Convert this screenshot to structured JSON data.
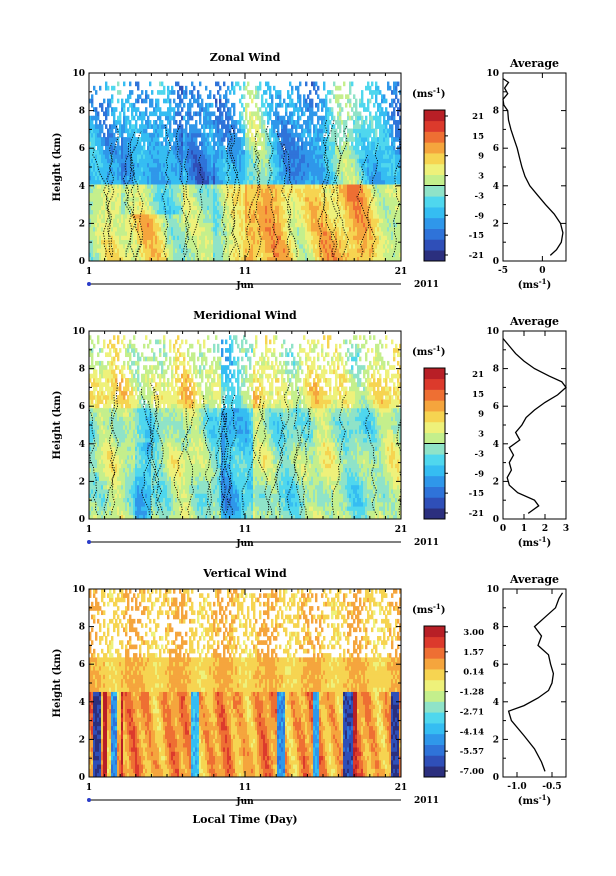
{
  "figure": {
    "month_label": "Jun",
    "year_label": "2011",
    "xlabel": "Local Time (Day)",
    "colors": [
      "#2b2f7e",
      "#2f4fb8",
      "#2f73d9",
      "#2f97ea",
      "#35bdf2",
      "#4fd7ee",
      "#8fe3c8",
      "#c4ef8c",
      "#eef17a",
      "#f6d451",
      "#f5a53d",
      "#ee6f33",
      "#dc3a2c",
      "#b81f26"
    ]
  },
  "chart_data": [
    {
      "type": "heatmap",
      "title": "Zonal Wind",
      "ylabel": "Height (km)",
      "xlabel": "",
      "x_ticks": [
        "1",
        "11",
        "21"
      ],
      "y_ticks": [
        "0",
        "2",
        "4",
        "6",
        "8",
        "10"
      ],
      "xlim": [
        1,
        21
      ],
      "ylim": [
        0,
        10
      ],
      "colorbar": {
        "unit": "(ms-1)",
        "unit_base": "(ms",
        "unit_exp": "-1",
        "ticks": [
          "21",
          "15",
          "9",
          "3",
          "-3",
          "-9",
          "-15",
          "-21"
        ],
        "range": [
          -24,
          24
        ]
      },
      "average_profile": {
        "title": "Average",
        "xlabel_base": "(ms",
        "xlabel_exp": "-1",
        "x_ticks": [
          "-5",
          "0"
        ],
        "y_ticks": [
          "0",
          "2",
          "4",
          "6",
          "8",
          "10"
        ],
        "xlim": [
          -5,
          3
        ],
        "height": [
          0.3,
          0.6,
          1.0,
          1.5,
          2.0,
          2.5,
          3.0,
          3.5,
          4.0,
          4.5,
          5.0,
          5.5,
          6.0,
          6.5,
          7.0,
          7.5,
          8.0,
          8.3,
          8.6,
          8.9,
          9.2,
          9.5,
          9.7
        ],
        "wind": [
          1.0,
          1.8,
          2.4,
          2.6,
          2.3,
          1.5,
          0.4,
          -0.6,
          -1.6,
          -2.2,
          -2.6,
          -2.9,
          -3.2,
          -3.6,
          -4.0,
          -4.3,
          -4.4,
          -4.9,
          -5.0,
          -4.4,
          -4.8,
          -4.3,
          -5.0
        ]
      }
    },
    {
      "type": "heatmap",
      "title": "Meridional Wind",
      "ylabel": "Height (km)",
      "xlabel": "",
      "x_ticks": [
        "1",
        "11",
        "21"
      ],
      "y_ticks": [
        "0",
        "2",
        "4",
        "6",
        "8",
        "10"
      ],
      "xlim": [
        1,
        21
      ],
      "ylim": [
        0,
        10
      ],
      "colorbar": {
        "unit": "(ms-1)",
        "unit_base": "(ms",
        "unit_exp": "-1",
        "ticks": [
          "21",
          "15",
          "9",
          "3",
          "-3",
          "-9",
          "-15",
          "-21"
        ],
        "range": [
          -24,
          24
        ]
      },
      "average_profile": {
        "title": "Average",
        "xlabel_base": "(ms",
        "xlabel_exp": "-1",
        "x_ticks": [
          "0",
          "1",
          "2",
          "3"
        ],
        "y_ticks": [
          "0",
          "2",
          "4",
          "6",
          "8",
          "10"
        ],
        "xlim": [
          0,
          3
        ],
        "height": [
          0.3,
          0.7,
          1.0,
          1.4,
          1.8,
          2.2,
          2.6,
          3.0,
          3.4,
          3.8,
          4.2,
          4.6,
          5.0,
          5.4,
          5.8,
          6.2,
          6.6,
          7.0,
          7.3,
          7.6,
          8.0,
          8.4,
          8.8,
          9.2,
          9.6
        ],
        "wind": [
          1.2,
          1.7,
          1.5,
          0.7,
          0.3,
          0.2,
          0.4,
          0.3,
          0.5,
          0.3,
          0.8,
          0.6,
          0.9,
          1.1,
          1.5,
          2.0,
          2.6,
          3.0,
          2.8,
          2.2,
          1.5,
          1.0,
          0.6,
          0.3,
          0.0
        ]
      }
    },
    {
      "type": "heatmap",
      "title": "Vertical Wind",
      "ylabel": "Height (km)",
      "xlabel": "Local Time (Day)",
      "x_ticks": [
        "1",
        "11",
        "21"
      ],
      "y_ticks": [
        "0",
        "2",
        "4",
        "6",
        "8",
        "10"
      ],
      "xlim": [
        1,
        21
      ],
      "ylim": [
        0,
        10
      ],
      "colorbar": {
        "unit": "(ms-1)",
        "unit_base": "(ms",
        "unit_exp": "-1",
        "ticks": [
          "3.00",
          "1.57",
          "0.14",
          "-1.28",
          "-2.71",
          "-4.14",
          "-5.57",
          "-7.00"
        ],
        "range": [
          -7.7,
          3.7
        ]
      },
      "average_profile": {
        "title": "Average",
        "xlabel_base": "(ms",
        "xlabel_exp": "-1",
        "x_ticks": [
          "-1.0",
          "-0.5"
        ],
        "y_ticks": [
          "0",
          "2",
          "4",
          "6",
          "8",
          "10"
        ],
        "xlim": [
          -1.2,
          -0.3
        ],
        "height": [
          0.3,
          0.8,
          1.5,
          2.2,
          3.0,
          3.5,
          3.8,
          4.2,
          4.6,
          5.0,
          5.5,
          6.0,
          6.5,
          7.0,
          7.5,
          8.0,
          8.5,
          9.0,
          9.5,
          9.8
        ],
        "wind": [
          -0.6,
          -0.65,
          -0.75,
          -0.9,
          -1.08,
          -1.12,
          -0.9,
          -0.7,
          -0.55,
          -0.5,
          -0.48,
          -0.52,
          -0.55,
          -0.7,
          -0.65,
          -0.75,
          -0.6,
          -0.45,
          -0.4,
          -0.35
        ]
      }
    }
  ]
}
